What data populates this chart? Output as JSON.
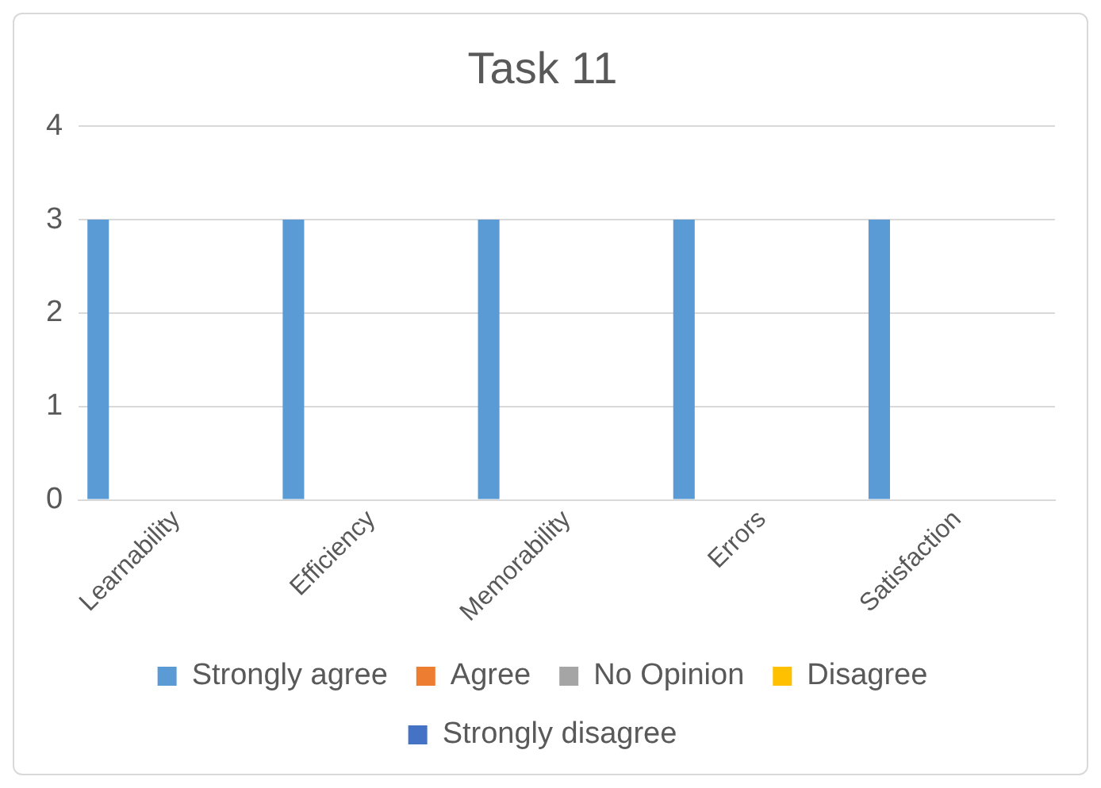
{
  "chart_data": {
    "type": "bar",
    "title": "Task 11",
    "categories": [
      "Learnability",
      "Efficiency",
      "Memorability",
      "Errors",
      "Satisfaction"
    ],
    "series": [
      {
        "name": "Strongly agree",
        "color": "#5b9bd5",
        "values": [
          3,
          3,
          3,
          3,
          3
        ]
      },
      {
        "name": "Agree",
        "color": "#ed7d31",
        "values": [
          0,
          0,
          0,
          0,
          0
        ]
      },
      {
        "name": "No Opinion",
        "color": "#a5a5a5",
        "values": [
          0,
          0,
          0,
          0,
          0
        ]
      },
      {
        "name": "Disagree",
        "color": "#ffc000",
        "values": [
          0,
          0,
          0,
          0,
          0
        ]
      },
      {
        "name": "Strongly disagree",
        "color": "#4472c4",
        "values": [
          0,
          0,
          0,
          0,
          0
        ]
      }
    ],
    "ylim": [
      0,
      4
    ],
    "yticks": [
      0,
      1,
      2,
      3,
      4
    ],
    "grid": "y",
    "legend": "bottom"
  }
}
